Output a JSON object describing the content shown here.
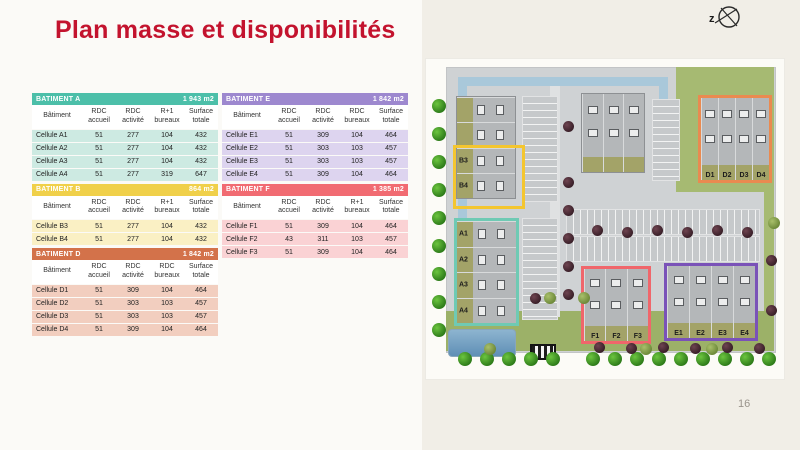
{
  "slide": {
    "title": "Plan masse et disponibilités",
    "page_number": "16"
  },
  "compass": {
    "label": "z"
  },
  "tables": [
    {
      "id": "A",
      "name": "BATIMENT A",
      "area": "1 943 m2",
      "column": 1,
      "header_color": "#4cbfa9",
      "row_color": "#cdeae2",
      "columns": [
        "Bâtiment",
        "RDC\naccueil",
        "RDC\nactivité",
        "R+1\nbureaux",
        "Surface\ntotale"
      ],
      "rows": [
        [
          "Cellule A1",
          "51",
          "277",
          "104",
          "432"
        ],
        [
          "Cellule A2",
          "51",
          "277",
          "104",
          "432"
        ],
        [
          "Cellule A3",
          "51",
          "277",
          "104",
          "432"
        ],
        [
          "Cellule A4",
          "51",
          "277",
          "319",
          "647"
        ]
      ]
    },
    {
      "id": "B",
      "name": "BATIMENT B",
      "area": "864 m2",
      "column": 1,
      "header_color": "#f0d04a",
      "row_color": "#faf0c4",
      "columns": [
        "Bâtiment",
        "RDC\naccueil",
        "RDC\nactivité",
        "R+1\nbureaux",
        "Surface\ntotale"
      ],
      "rows": [
        [
          "Cellule B3",
          "51",
          "277",
          "104",
          "432"
        ],
        [
          "Cellule B4",
          "51",
          "277",
          "104",
          "432"
        ]
      ]
    },
    {
      "id": "D",
      "name": "BATIMENT D",
      "area": "1 842 m2",
      "column": 1,
      "header_color": "#d3724a",
      "row_color": "#f2cebf",
      "columns": [
        "Bâtiment",
        "RDC\naccueil",
        "RDC\nactivité",
        "RDC\nbureaux",
        "Surface\ntotale"
      ],
      "rows": [
        [
          "Cellule D1",
          "51",
          "309",
          "104",
          "464"
        ],
        [
          "Cellule D2",
          "51",
          "303",
          "103",
          "457"
        ],
        [
          "Cellule D3",
          "51",
          "303",
          "103",
          "457"
        ],
        [
          "Cellule D4",
          "51",
          "309",
          "104",
          "464"
        ]
      ]
    },
    {
      "id": "E",
      "name": "BATIMENT E",
      "area": "1 842 m2",
      "column": 2,
      "header_color": "#9d88cf",
      "row_color": "#ddd4ef",
      "columns": [
        "Bâtiment",
        "RDC\naccueil",
        "RDC\nactivité",
        "RDC\nbureaux",
        "Surface\ntotale"
      ],
      "rows": [
        [
          "Cellule E1",
          "51",
          "309",
          "104",
          "464"
        ],
        [
          "Cellule E2",
          "51",
          "303",
          "103",
          "457"
        ],
        [
          "Cellule E3",
          "51",
          "303",
          "103",
          "457"
        ],
        [
          "Cellule E4",
          "51",
          "309",
          "104",
          "464"
        ]
      ]
    },
    {
      "id": "F",
      "name": "BATIMENT F",
      "area": "1 385 m2",
      "column": 2,
      "header_color": "#f16b72",
      "row_color": "#fad2d4",
      "columns": [
        "Bâtiment",
        "RDC\naccueil",
        "RDC\nactivité",
        "R+1\nbureaux",
        "Surface\ntotale"
      ],
      "rows": [
        [
          "Cellule F1",
          "51",
          "309",
          "104",
          "464"
        ],
        [
          "Cellule F2",
          "43",
          "311",
          "103",
          "457"
        ],
        [
          "Cellule F3",
          "51",
          "309",
          "104",
          "464"
        ]
      ]
    }
  ],
  "map": {
    "blocks": [
      {
        "id": "B",
        "orientation": "rows",
        "cells": [
          "",
          "",
          "B3",
          "B4"
        ],
        "outline_color": "#f4c62f"
      },
      {
        "id": "D",
        "orientation": "cols",
        "cells": [
          "D1",
          "D2",
          "D3",
          "D4"
        ],
        "outline_color": "#ea8a50"
      },
      {
        "id": "A",
        "orientation": "rows",
        "cells": [
          "A1",
          "A2",
          "A3",
          "A4"
        ],
        "outline_color": "#6fcab4"
      },
      {
        "id": "F",
        "orientation": "cols",
        "cells": [
          "F1",
          "F2",
          "F3"
        ],
        "outline_color": "#f0666b"
      },
      {
        "id": "E",
        "orientation": "cols",
        "cells": [
          "E1",
          "E2",
          "E3",
          "E4"
        ],
        "outline_color": "#7a52b8"
      }
    ]
  }
}
